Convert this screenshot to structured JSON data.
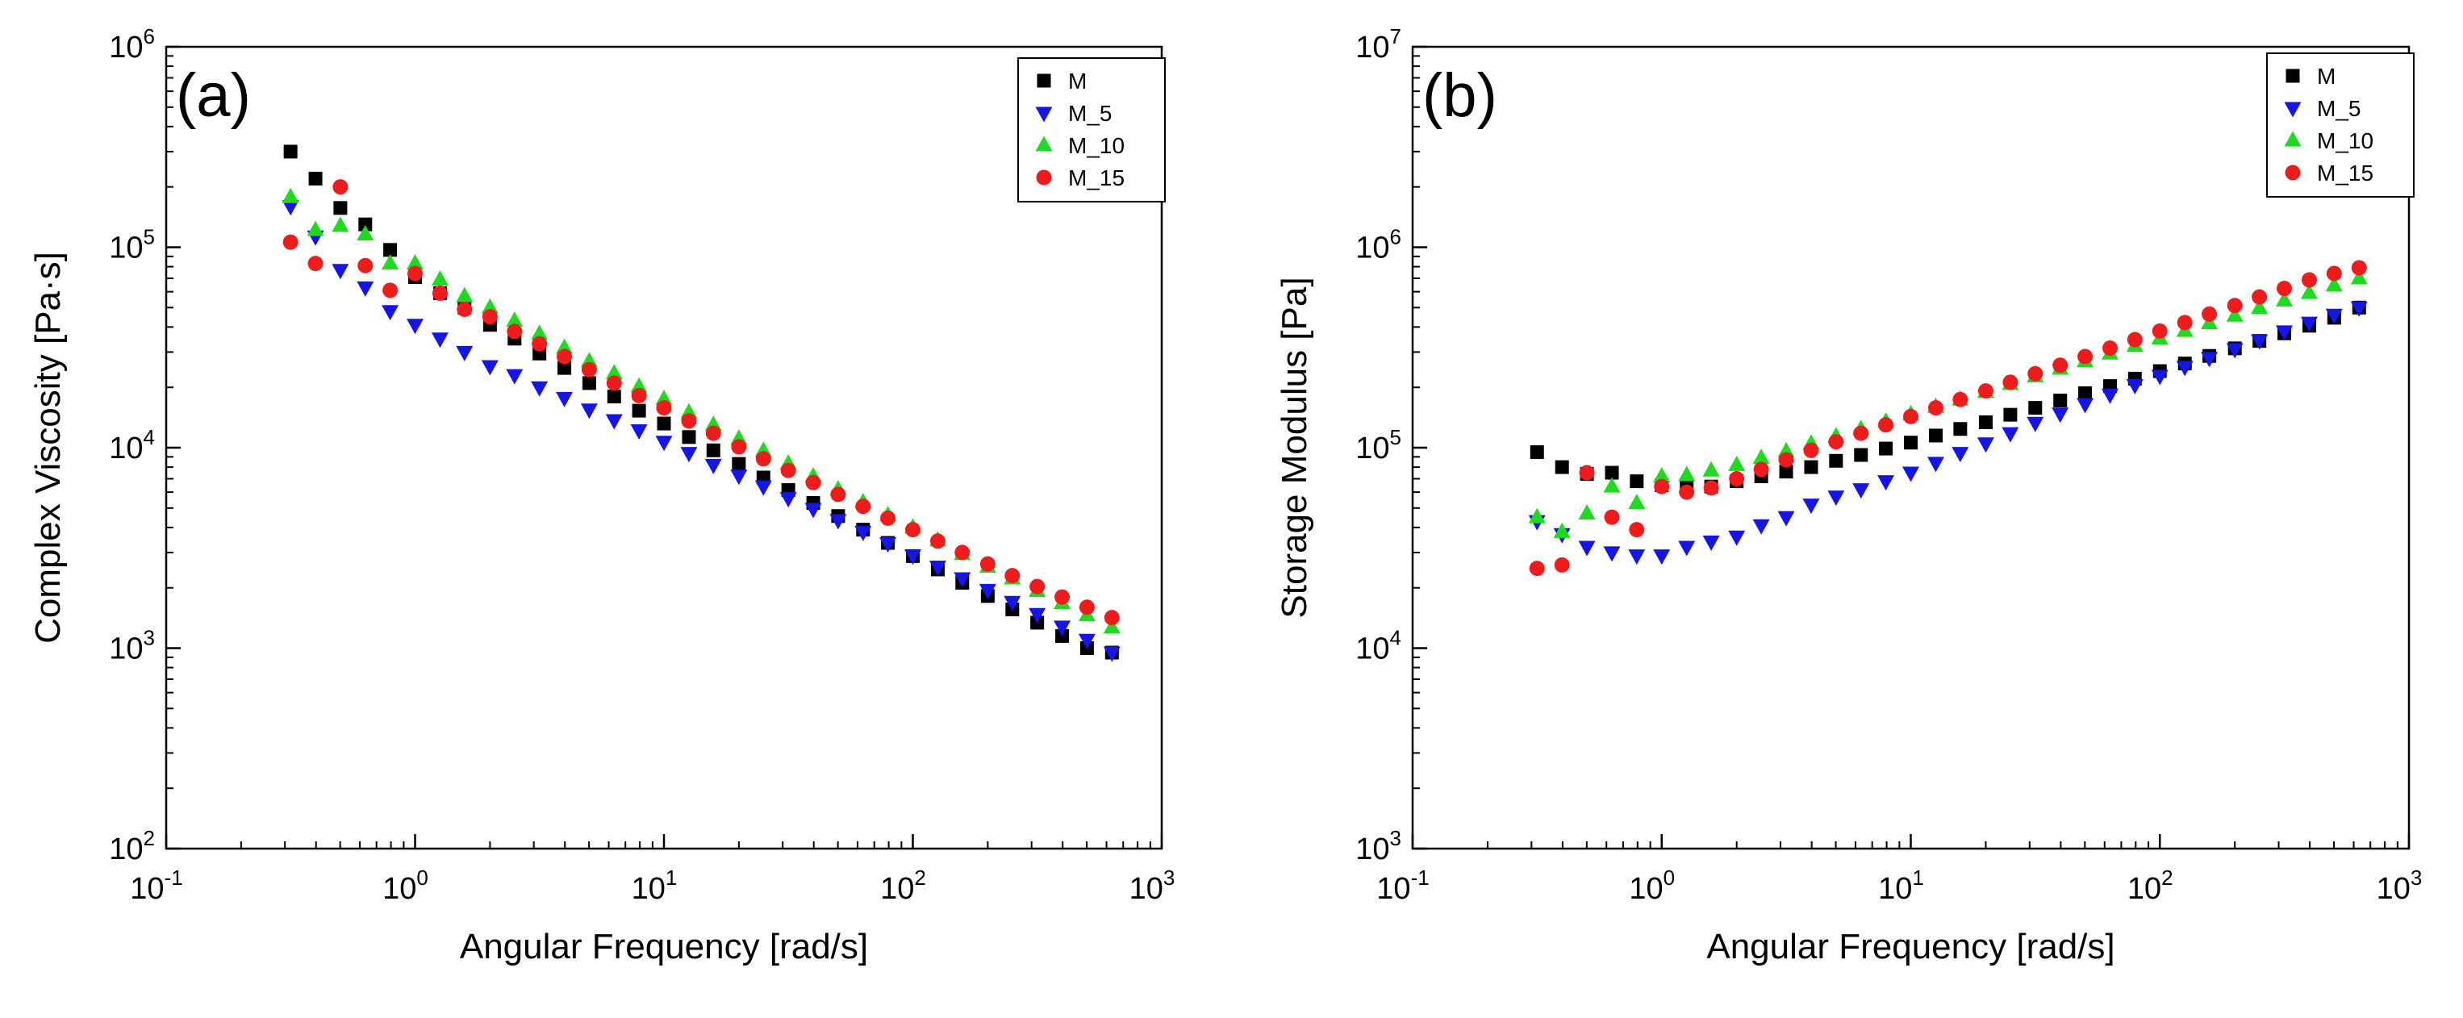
{
  "chart_data": [
    {
      "type": "scatter",
      "panel_label": "(a)",
      "title": "",
      "xlabel": "Angular Frequency [rad/s]",
      "ylabel": "Complex Viscosity [Pa·s]",
      "xscale": "log",
      "yscale": "log",
      "xlim": [
        0.1,
        1000
      ],
      "ylim": [
        100,
        1000000
      ],
      "xticks": [
        {
          "base": "10",
          "exp": "-1"
        },
        {
          "base": "10",
          "exp": "0"
        },
        {
          "base": "10",
          "exp": "1"
        },
        {
          "base": "10",
          "exp": "2"
        },
        {
          "base": "10",
          "exp": "3"
        }
      ],
      "yticks": [
        {
          "base": "10",
          "exp": "2"
        },
        {
          "base": "10",
          "exp": "3"
        },
        {
          "base": "10",
          "exp": "4"
        },
        {
          "base": "10",
          "exp": "5"
        },
        {
          "base": "10",
          "exp": "6"
        }
      ],
      "legend": "top-right",
      "grid": false,
      "x": [
        0.316,
        0.398,
        0.501,
        0.631,
        0.794,
        1,
        1.26,
        1.58,
        2,
        2.51,
        3.16,
        3.98,
        5.01,
        6.31,
        7.94,
        10,
        12.6,
        15.8,
        20,
        25.1,
        31.6,
        39.8,
        50.1,
        63.1,
        79.4,
        100,
        126,
        158,
        200,
        251,
        316,
        398,
        501,
        631
      ],
      "series": [
        {
          "name": "M",
          "marker": "square",
          "color": "#000000",
          "values": [
            300000,
            220000,
            157000,
            130000,
            97000,
            71000,
            59000,
            50000,
            41000,
            35000,
            29500,
            25000,
            21000,
            18000,
            15300,
            13200,
            11300,
            9700,
            8300,
            7100,
            6150,
            5300,
            4560,
            3900,
            3350,
            2880,
            2470,
            2120,
            1820,
            1560,
            1340,
            1150,
            1000,
            950
          ]
        },
        {
          "name": "M_5",
          "marker": "triangle-down",
          "color": "#1515e6",
          "values": [
            160000,
            113000,
            77000,
            63000,
            48000,
            41000,
            35000,
            30000,
            25500,
            23000,
            20000,
            17700,
            15500,
            13700,
            12200,
            10700,
            9400,
            8200,
            7250,
            6400,
            5600,
            4950,
            4350,
            3800,
            3330,
            2900,
            2550,
            2230,
            1950,
            1700,
            1480,
            1280,
            1100,
            950
          ]
        },
        {
          "name": "M_10",
          "marker": "triangle-up",
          "color": "#22d922",
          "values": [
            178000,
            122000,
            128000,
            116000,
            83000,
            83000,
            69000,
            57000,
            50000,
            43000,
            37000,
            31500,
            27000,
            23500,
            20200,
            17500,
            15000,
            13000,
            11100,
            9650,
            8350,
            7200,
            6200,
            5350,
            4600,
            4000,
            3450,
            2950,
            2550,
            2230,
            1930,
            1680,
            1460,
            1270
          ]
        },
        {
          "name": "M_15",
          "marker": "circle",
          "color": "#ee1c1c",
          "values": [
            106000,
            83000,
            200000,
            81000,
            61000,
            74000,
            59000,
            49000,
            45000,
            38000,
            33000,
            28500,
            24500,
            21000,
            18200,
            15800,
            13600,
            11800,
            10100,
            8800,
            7700,
            6700,
            5850,
            5100,
            4450,
            3900,
            3420,
            3000,
            2630,
            2300,
            2030,
            1800,
            1600,
            1420
          ]
        }
      ]
    },
    {
      "type": "scatter",
      "panel_label": "(b)",
      "title": "",
      "xlabel": "Angular Frequency [rad/s]",
      "ylabel": "Storage Modulus [Pa]",
      "xscale": "log",
      "yscale": "log",
      "xlim": [
        0.1,
        1000
      ],
      "ylim": [
        1000,
        10000000
      ],
      "xticks": [
        {
          "base": "10",
          "exp": "-1"
        },
        {
          "base": "10",
          "exp": "0"
        },
        {
          "base": "10",
          "exp": "1"
        },
        {
          "base": "10",
          "exp": "2"
        },
        {
          "base": "10",
          "exp": "3"
        }
      ],
      "yticks": [
        {
          "base": "10",
          "exp": "3"
        },
        {
          "base": "10",
          "exp": "4"
        },
        {
          "base": "10",
          "exp": "5"
        },
        {
          "base": "10",
          "exp": "6"
        },
        {
          "base": "10",
          "exp": "7"
        }
      ],
      "legend": "top-right",
      "grid": false,
      "x": [
        0.316,
        0.398,
        0.501,
        0.631,
        0.794,
        1,
        1.26,
        1.58,
        2,
        2.51,
        3.16,
        3.98,
        5.01,
        6.31,
        7.94,
        10,
        12.6,
        15.8,
        20,
        25.1,
        31.6,
        39.8,
        50.1,
        63.1,
        79.4,
        100,
        126,
        158,
        200,
        251,
        316,
        398,
        501,
        631
      ],
      "series": [
        {
          "name": "M",
          "marker": "square",
          "color": "#000000",
          "values": [
            95000,
            80000,
            74000,
            75000,
            68000,
            65000,
            63000,
            64000,
            68000,
            72000,
            76000,
            80000,
            86000,
            92000,
            99000,
            106000,
            115000,
            124000,
            134000,
            146000,
            158000,
            172000,
            187000,
            203000,
            221000,
            241000,
            263000,
            287000,
            313000,
            341000,
            372000,
            406000,
            445000,
            500000
          ]
        },
        {
          "name": "M_5",
          "marker": "triangle-down",
          "color": "#1515e6",
          "values": [
            43000,
            37000,
            32000,
            30000,
            29000,
            29000,
            32000,
            34000,
            36000,
            41000,
            45000,
            52000,
            57000,
            62000,
            68000,
            75000,
            84000,
            94000,
            105000,
            118000,
            133000,
            148000,
            165000,
            184000,
            205000,
            228000,
            253000,
            280000,
            310000,
            343000,
            380000,
            420000,
            460000,
            500000
          ]
        },
        {
          "name": "M_10",
          "marker": "triangle-up",
          "color": "#22d922",
          "values": [
            45000,
            38000,
            47000,
            64000,
            53000,
            72000,
            73000,
            77000,
            82000,
            89000,
            96000,
            105000,
            114000,
            124000,
            135000,
            147000,
            160000,
            174000,
            190000,
            208000,
            227000,
            248000,
            270000,
            295000,
            322000,
            351000,
            383000,
            418000,
            456000,
            498000,
            543000,
            592000,
            645000,
            700000
          ]
        },
        {
          "name": "M_15",
          "marker": "circle",
          "color": "#ee1c1c",
          "values": [
            25000,
            26000,
            75000,
            45000,
            39000,
            64000,
            60000,
            63000,
            70000,
            78000,
            87000,
            97000,
            107000,
            118000,
            130000,
            143000,
            158000,
            174000,
            192000,
            212000,
            234000,
            258000,
            285000,
            314000,
            346000,
            382000,
            421000,
            464000,
            512000,
            565000,
            623000,
            687000,
            740000,
            790000
          ]
        }
      ]
    }
  ]
}
